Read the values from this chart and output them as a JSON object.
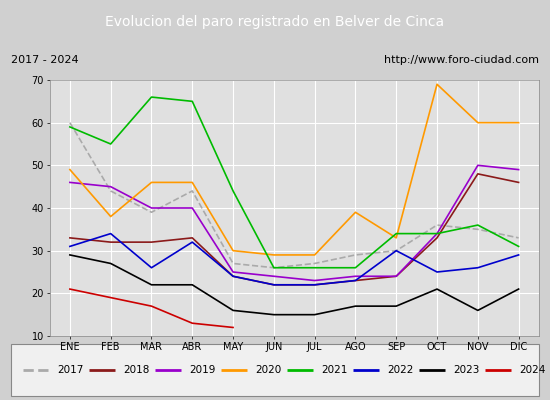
{
  "title": "Evolucion del paro registrado en Belver de Cinca",
  "subtitle_left": "2017 - 2024",
  "subtitle_right": "http://www.foro-ciudad.com",
  "x_labels": [
    "ENE",
    "FEB",
    "MAR",
    "ABR",
    "MAY",
    "JUN",
    "JUL",
    "AGO",
    "SEP",
    "OCT",
    "NOV",
    "DIC"
  ],
  "ylim": [
    10,
    70
  ],
  "yticks": [
    10,
    20,
    30,
    40,
    50,
    60,
    70
  ],
  "series": {
    "2017": {
      "color": "#aaaaaa",
      "linestyle": "--",
      "data": [
        60,
        44,
        39,
        44,
        27,
        26,
        27,
        29,
        30,
        36,
        35,
        33
      ]
    },
    "2018": {
      "color": "#8b1a1a",
      "linestyle": "-",
      "data": [
        33,
        32,
        32,
        33,
        24,
        22,
        22,
        23,
        24,
        33,
        48,
        46
      ]
    },
    "2019": {
      "color": "#9900cc",
      "linestyle": "-",
      "data": [
        46,
        45,
        40,
        40,
        25,
        24,
        23,
        24,
        24,
        34,
        50,
        49
      ]
    },
    "2020": {
      "color": "#ff9900",
      "linestyle": "-",
      "data": [
        49,
        38,
        46,
        46,
        30,
        29,
        29,
        39,
        33,
        69,
        60,
        60
      ]
    },
    "2021": {
      "color": "#00bb00",
      "linestyle": "-",
      "data": [
        59,
        55,
        66,
        65,
        44,
        26,
        26,
        26,
        34,
        34,
        36,
        31
      ]
    },
    "2022": {
      "color": "#0000cc",
      "linestyle": "-",
      "data": [
        31,
        34,
        26,
        32,
        24,
        22,
        22,
        23,
        30,
        25,
        26,
        29
      ]
    },
    "2023": {
      "color": "#000000",
      "linestyle": "-",
      "data": [
        29,
        27,
        22,
        22,
        16,
        15,
        15,
        17,
        17,
        21,
        16,
        21
      ]
    },
    "2024": {
      "color": "#cc0000",
      "linestyle": "-",
      "data": [
        21,
        19,
        17,
        13,
        12,
        null,
        null,
        null,
        null,
        null,
        null,
        null
      ]
    }
  },
  "title_bg": "#4472c4",
  "title_color": "#ffffff",
  "subtitle_bg": "#d0d0d0",
  "fig_bg": "#d0d0d0",
  "plot_bg": "#e0e0e0",
  "grid_color": "#ffffff",
  "legend_bg": "#f0f0f0",
  "title_fontsize": 10,
  "subtitle_fontsize": 8,
  "axis_fontsize": 7,
  "legend_fontsize": 7.5
}
